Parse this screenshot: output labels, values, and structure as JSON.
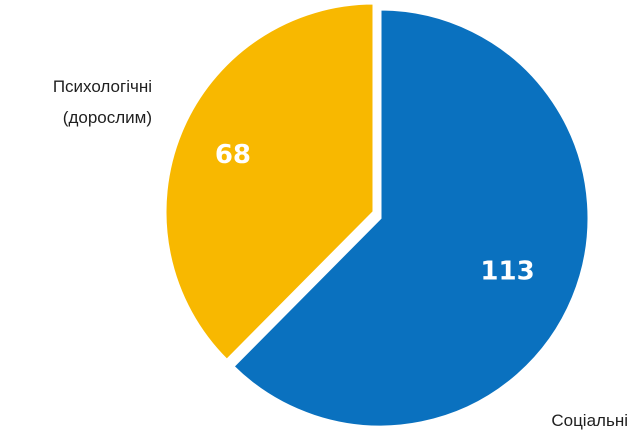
{
  "chart_data": {
    "type": "pie",
    "slices": [
      {
        "label_lines": [
          "Соціальні"
        ],
        "value": 113,
        "value_label": "113",
        "color": "#0A71BF"
      },
      {
        "label_lines": [
          "Психологічні",
          "(дорослим)"
        ],
        "value": 68,
        "value_label": "68",
        "color": "#F8B800"
      }
    ],
    "exploded_slice": "Психологічні (дорослим)",
    "start": "12 o'clock",
    "direction": "clockwise"
  }
}
